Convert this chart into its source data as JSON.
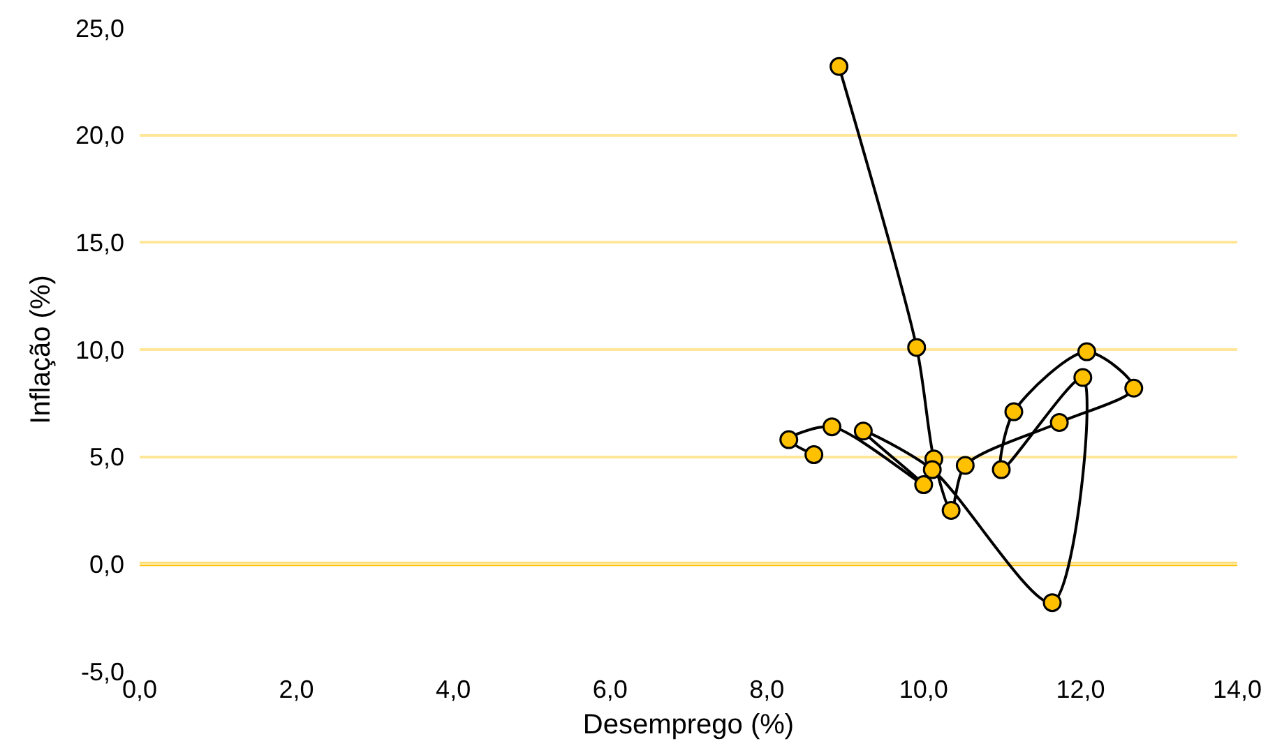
{
  "chart_data": {
    "type": "line",
    "xlabel": "Desemprego (%)",
    "ylabel": "Inflação (%)",
    "xlim": [
      0,
      14
    ],
    "ylim": [
      -5,
      25
    ],
    "xticks": [
      {
        "value": 0,
        "label": "0,0"
      },
      {
        "value": 2,
        "label": "2,0"
      },
      {
        "value": 4,
        "label": "4,0"
      },
      {
        "value": 6,
        "label": "6,0"
      },
      {
        "value": 8,
        "label": "8,0"
      },
      {
        "value": 10,
        "label": "10,0"
      },
      {
        "value": 12,
        "label": "12,0"
      },
      {
        "value": 14,
        "label": "14,0"
      }
    ],
    "yticks": [
      {
        "value": -5,
        "label": "-5,0"
      },
      {
        "value": 0,
        "label": "0,0"
      },
      {
        "value": 5,
        "label": "5,0"
      },
      {
        "value": 10,
        "label": "10,0"
      },
      {
        "value": 15,
        "label": "15,0"
      },
      {
        "value": 20,
        "label": "20,0"
      },
      {
        "value": 25,
        "label": "25,0"
      }
    ],
    "grid": "y",
    "ref_lines": [
      {
        "axis": "y",
        "value": 0,
        "color": "#ffc000"
      }
    ],
    "marker": "circle",
    "line_style": "solid",
    "series": [
      {
        "color": "#ffc000",
        "x": [
          8.92,
          9.91,
          10.13,
          10.35,
          10.53,
          11.73,
          12.68,
          12.08,
          11.15,
          10.99,
          12.03,
          11.64,
          10.11,
          9.23,
          10.0,
          8.83,
          8.28,
          8.6
        ],
        "values": [
          23.2,
          10.1,
          4.9,
          2.5,
          4.6,
          6.6,
          8.2,
          9.9,
          7.1,
          4.4,
          8.7,
          -1.8,
          4.4,
          6.2,
          3.7,
          6.4,
          5.8,
          5.1
        ]
      }
    ]
  }
}
